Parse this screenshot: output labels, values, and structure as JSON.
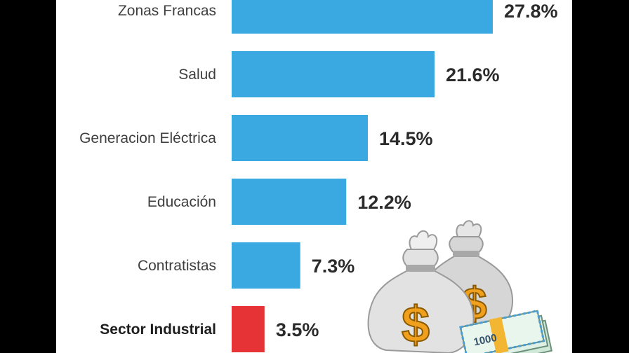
{
  "chart_data": {
    "type": "bar",
    "orientation": "horizontal",
    "categories": [
      "Zonas Francas",
      "Salud",
      "Generacion Eléctrica",
      "Educación",
      "Contratistas",
      "Sector Industrial"
    ],
    "values": [
      27.8,
      21.6,
      14.5,
      12.2,
      7.3,
      3.5
    ],
    "value_labels": [
      "27.8%",
      "21.6%",
      "14.5%",
      "12.2%",
      "7.3%",
      "3.5%"
    ],
    "highlight_index": 5,
    "bar_color": "#3aa9e2",
    "highlight_color": "#e63336",
    "title": "",
    "xlabel": "",
    "ylabel": "",
    "grid": false,
    "legend": "none"
  },
  "decoration": {
    "money_bag_icon": "money-bag-icon",
    "dollar_sign": "$",
    "banknote_text": "1000"
  }
}
